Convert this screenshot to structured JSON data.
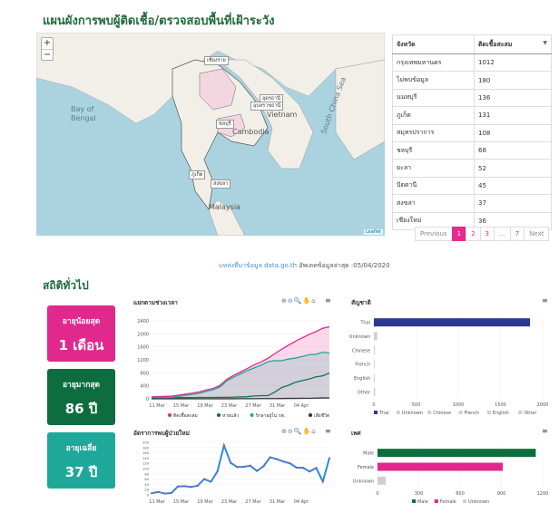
{
  "page": {
    "title": "แผนผังการพบผู้ติดเชื้อ/ตรวจสอบพื้นที่เฝ้าระวัง",
    "section_title": "สถิติทั่วไป",
    "source_prefix": "แหล่งที่มาข้อมูล data.go.th",
    "updated_text": "อัพเดทข้อมูลล่าสุด :05/04/2020"
  },
  "map": {
    "zoom_in": "+",
    "zoom_out": "−",
    "sea_labels": [
      "Bay of",
      "Bengal",
      "South China Sea"
    ],
    "land_labels": [
      "Vietnam",
      "Cambodia",
      "Malaysia"
    ],
    "place_tags": [
      "เชียงราย",
      "อุดรธานี",
      "อุบลราชธานี",
      "ชลบุรี",
      "ภูเก็ต",
      "สงขลา"
    ],
    "attribution": "Leaflet"
  },
  "table": {
    "headers": [
      "จังหวัด",
      "ติดเชื้อสะสม"
    ],
    "sort_icon": "▼",
    "rows": [
      [
        "กรุงเทพมหานคร",
        "1012"
      ],
      [
        "ไม่พบข้อมูล",
        "180"
      ],
      [
        "นนทบุรี",
        "136"
      ],
      [
        "ภูเก็ต",
        "131"
      ],
      [
        "สมุทรปราการ",
        "108"
      ],
      [
        "ชลบุรี",
        "68"
      ],
      [
        "ยะลา",
        "52"
      ],
      [
        "ปัตตานี",
        "45"
      ],
      [
        "สงขลา",
        "37"
      ],
      [
        "เชียงใหม่",
        "36"
      ]
    ]
  },
  "pager": {
    "previous": "Previous",
    "pages": [
      "1",
      "2",
      "3",
      "...",
      "7"
    ],
    "next": "Next",
    "active": "1"
  },
  "stats": {
    "min_label": "อายุน้อยสุด",
    "min_value": "1 เดือน",
    "max_label": "อายุมากสุด",
    "max_value": "86 ปี",
    "avg_label": "อายุเฉลี่ย",
    "avg_value": "37 ปี"
  },
  "toolbar": {
    "icons": "⊕⊖🔍✋⌂",
    "menu": "≡"
  },
  "colors": {
    "pink": "#e1288c",
    "green": "#0e6d3f",
    "teal": "#1fa89a",
    "navy": "#2b3990",
    "blue": "#2b8cd6",
    "grey": "#cfcfcf"
  },
  "chart_data": [
    {
      "type": "area",
      "title": "แยกตามช่วงเวลา",
      "x_ticks": [
        "11 Mar",
        "15 Mar",
        "19 Mar",
        "23 Mar",
        "27 Mar",
        "31 Mar",
        "04 Apr"
      ],
      "ylim": [
        0,
        2400
      ],
      "y_ticks": [
        0,
        400,
        800,
        1200,
        1600,
        2000,
        2400
      ],
      "series": [
        {
          "name": "ติดเชื้อสะสม",
          "color": "#e1288c",
          "values": [
            59,
            70,
            75,
            82,
            114,
            147,
            177,
            212,
            272,
            322,
            411,
            599,
            721,
            827,
            934,
            1045,
            1136,
            1245,
            1388,
            1524,
            1651,
            1771,
            1875,
            1978,
            2067,
            2169,
            2220
          ]
        },
        {
          "name": "หายแล้ว",
          "color": "#0e6d3f",
          "values": [
            35,
            35,
            36,
            36,
            37,
            37,
            39,
            41,
            42,
            42,
            44,
            44,
            52,
            57,
            64,
            88,
            97,
            97,
            205,
            342,
            416,
            505,
            558,
            607,
            674,
            706,
            793
          ]
        },
        {
          "name": "รักษาอยู่ใน รพ.",
          "color": "#1fa89a",
          "values": [
            23,
            34,
            38,
            45,
            76,
            109,
            137,
            170,
            229,
            279,
            366,
            554,
            667,
            767,
            866,
            953,
            1033,
            1140,
            1175,
            1173,
            1223,
            1254,
            1301,
            1356,
            1369,
            1436,
            1407
          ]
        },
        {
          "name": "เสียชีวิต",
          "color": "#333333",
          "values": [
            1,
            1,
            1,
            1,
            1,
            1,
            1,
            1,
            1,
            1,
            1,
            1,
            2,
            3,
            4,
            4,
            6,
            8,
            8,
            9,
            12,
            12,
            16,
            15,
            20,
            26,
            27
          ]
        }
      ]
    },
    {
      "type": "bar",
      "title": "สัญชาติ",
      "orientation": "horizontal",
      "categories": [
        "Thai",
        "Unknown",
        "Chinese",
        "French",
        "English",
        "Other"
      ],
      "values": [
        1850,
        40,
        12,
        10,
        10,
        14
      ],
      "colors": [
        "#2b3990",
        "#cfcfcf",
        "#cfcfcf",
        "#cfcfcf",
        "#cfcfcf",
        "#cfcfcf"
      ],
      "x_ticks": [
        0,
        500,
        1000,
        1500,
        2000
      ],
      "xlim": [
        0,
        2000
      ],
      "legend": [
        "Thai",
        "Unknown",
        "Chinese",
        "French",
        "English",
        "Other"
      ]
    },
    {
      "type": "line",
      "title": "อัตราการพบผู้ป่วยใหม่",
      "x_ticks": [
        "11 Mar",
        "15 Mar",
        "19 Mar",
        "23 Mar",
        "27 Mar",
        "31 Mar",
        "04 Apr"
      ],
      "ylim": [
        0,
        200
      ],
      "y_ticks": [
        0,
        20,
        40,
        60,
        80,
        100,
        120,
        140,
        160,
        180,
        200
      ],
      "color": "#2b8cd6",
      "marker_color": "#e1288c",
      "values": [
        6,
        11,
        5,
        7,
        32,
        33,
        30,
        35,
        60,
        50,
        89,
        188,
        122,
        106,
        107,
        111,
        91,
        109,
        143,
        136,
        127,
        120,
        104,
        103,
        89,
        102,
        51,
        140
      ]
    },
    {
      "type": "bar",
      "title": "เพศ",
      "orientation": "horizontal",
      "categories": [
        "Male",
        "Female",
        "Unknown"
      ],
      "values": [
        1150,
        910,
        60
      ],
      "colors": [
        "#0e6d3f",
        "#e1288c",
        "#cfcfcf"
      ],
      "x_ticks": [
        0,
        300,
        600,
        900,
        1200
      ],
      "xlim": [
        0,
        1200
      ],
      "legend": [
        "Male",
        "Female",
        "Unknown"
      ]
    }
  ]
}
